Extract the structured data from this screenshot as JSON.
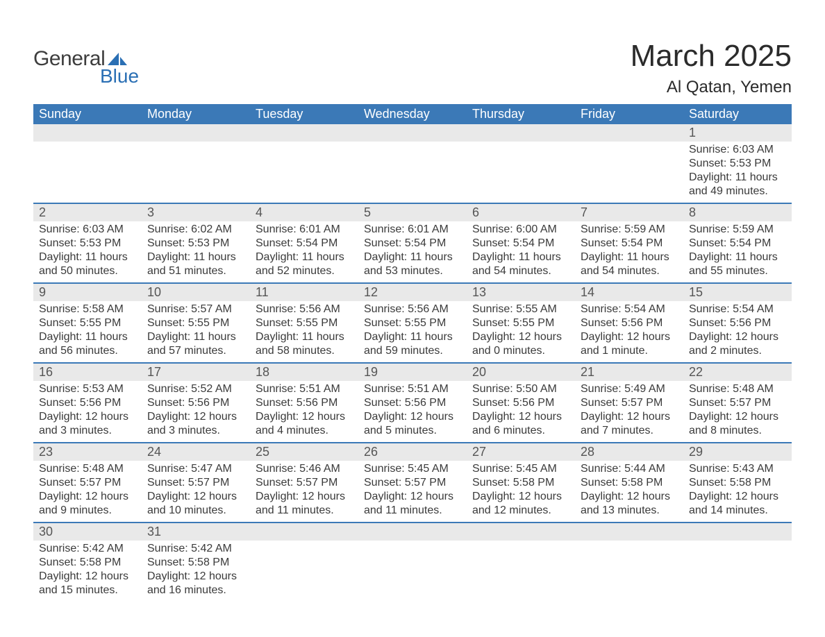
{
  "brand": {
    "word1": "General",
    "word2": "Blue",
    "logo_color": "#2a6fb4",
    "text_color": "#3d3d3d"
  },
  "title": "March 2025",
  "location": "Al Qatan, Yemen",
  "colors": {
    "header_bg": "#3b79b7",
    "header_text": "#ffffff",
    "row_divider": "#3b79b7",
    "daynum_bg": "#e9e9e9",
    "daynum_text": "#555555",
    "body_text": "#3a3a3a",
    "page_bg": "#ffffff"
  },
  "typography": {
    "title_fontsize": 44,
    "location_fontsize": 24,
    "header_fontsize": 18,
    "daynum_fontsize": 18,
    "body_fontsize": 16,
    "logo_fontsize": 30
  },
  "weekdays": [
    "Sunday",
    "Monday",
    "Tuesday",
    "Wednesday",
    "Thursday",
    "Friday",
    "Saturday"
  ],
  "weeks": [
    [
      null,
      null,
      null,
      null,
      null,
      null,
      {
        "n": "1",
        "sunrise": "Sunrise: 6:03 AM",
        "sunset": "Sunset: 5:53 PM",
        "dl1": "Daylight: 11 hours",
        "dl2": "and 49 minutes."
      }
    ],
    [
      {
        "n": "2",
        "sunrise": "Sunrise: 6:03 AM",
        "sunset": "Sunset: 5:53 PM",
        "dl1": "Daylight: 11 hours",
        "dl2": "and 50 minutes."
      },
      {
        "n": "3",
        "sunrise": "Sunrise: 6:02 AM",
        "sunset": "Sunset: 5:53 PM",
        "dl1": "Daylight: 11 hours",
        "dl2": "and 51 minutes."
      },
      {
        "n": "4",
        "sunrise": "Sunrise: 6:01 AM",
        "sunset": "Sunset: 5:54 PM",
        "dl1": "Daylight: 11 hours",
        "dl2": "and 52 minutes."
      },
      {
        "n": "5",
        "sunrise": "Sunrise: 6:01 AM",
        "sunset": "Sunset: 5:54 PM",
        "dl1": "Daylight: 11 hours",
        "dl2": "and 53 minutes."
      },
      {
        "n": "6",
        "sunrise": "Sunrise: 6:00 AM",
        "sunset": "Sunset: 5:54 PM",
        "dl1": "Daylight: 11 hours",
        "dl2": "and 54 minutes."
      },
      {
        "n": "7",
        "sunrise": "Sunrise: 5:59 AM",
        "sunset": "Sunset: 5:54 PM",
        "dl1": "Daylight: 11 hours",
        "dl2": "and 54 minutes."
      },
      {
        "n": "8",
        "sunrise": "Sunrise: 5:59 AM",
        "sunset": "Sunset: 5:54 PM",
        "dl1": "Daylight: 11 hours",
        "dl2": "and 55 minutes."
      }
    ],
    [
      {
        "n": "9",
        "sunrise": "Sunrise: 5:58 AM",
        "sunset": "Sunset: 5:55 PM",
        "dl1": "Daylight: 11 hours",
        "dl2": "and 56 minutes."
      },
      {
        "n": "10",
        "sunrise": "Sunrise: 5:57 AM",
        "sunset": "Sunset: 5:55 PM",
        "dl1": "Daylight: 11 hours",
        "dl2": "and 57 minutes."
      },
      {
        "n": "11",
        "sunrise": "Sunrise: 5:56 AM",
        "sunset": "Sunset: 5:55 PM",
        "dl1": "Daylight: 11 hours",
        "dl2": "and 58 minutes."
      },
      {
        "n": "12",
        "sunrise": "Sunrise: 5:56 AM",
        "sunset": "Sunset: 5:55 PM",
        "dl1": "Daylight: 11 hours",
        "dl2": "and 59 minutes."
      },
      {
        "n": "13",
        "sunrise": "Sunrise: 5:55 AM",
        "sunset": "Sunset: 5:55 PM",
        "dl1": "Daylight: 12 hours",
        "dl2": "and 0 minutes."
      },
      {
        "n": "14",
        "sunrise": "Sunrise: 5:54 AM",
        "sunset": "Sunset: 5:56 PM",
        "dl1": "Daylight: 12 hours",
        "dl2": "and 1 minute."
      },
      {
        "n": "15",
        "sunrise": "Sunrise: 5:54 AM",
        "sunset": "Sunset: 5:56 PM",
        "dl1": "Daylight: 12 hours",
        "dl2": "and 2 minutes."
      }
    ],
    [
      {
        "n": "16",
        "sunrise": "Sunrise: 5:53 AM",
        "sunset": "Sunset: 5:56 PM",
        "dl1": "Daylight: 12 hours",
        "dl2": "and 3 minutes."
      },
      {
        "n": "17",
        "sunrise": "Sunrise: 5:52 AM",
        "sunset": "Sunset: 5:56 PM",
        "dl1": "Daylight: 12 hours",
        "dl2": "and 3 minutes."
      },
      {
        "n": "18",
        "sunrise": "Sunrise: 5:51 AM",
        "sunset": "Sunset: 5:56 PM",
        "dl1": "Daylight: 12 hours",
        "dl2": "and 4 minutes."
      },
      {
        "n": "19",
        "sunrise": "Sunrise: 5:51 AM",
        "sunset": "Sunset: 5:56 PM",
        "dl1": "Daylight: 12 hours",
        "dl2": "and 5 minutes."
      },
      {
        "n": "20",
        "sunrise": "Sunrise: 5:50 AM",
        "sunset": "Sunset: 5:56 PM",
        "dl1": "Daylight: 12 hours",
        "dl2": "and 6 minutes."
      },
      {
        "n": "21",
        "sunrise": "Sunrise: 5:49 AM",
        "sunset": "Sunset: 5:57 PM",
        "dl1": "Daylight: 12 hours",
        "dl2": "and 7 minutes."
      },
      {
        "n": "22",
        "sunrise": "Sunrise: 5:48 AM",
        "sunset": "Sunset: 5:57 PM",
        "dl1": "Daylight: 12 hours",
        "dl2": "and 8 minutes."
      }
    ],
    [
      {
        "n": "23",
        "sunrise": "Sunrise: 5:48 AM",
        "sunset": "Sunset: 5:57 PM",
        "dl1": "Daylight: 12 hours",
        "dl2": "and 9 minutes."
      },
      {
        "n": "24",
        "sunrise": "Sunrise: 5:47 AM",
        "sunset": "Sunset: 5:57 PM",
        "dl1": "Daylight: 12 hours",
        "dl2": "and 10 minutes."
      },
      {
        "n": "25",
        "sunrise": "Sunrise: 5:46 AM",
        "sunset": "Sunset: 5:57 PM",
        "dl1": "Daylight: 12 hours",
        "dl2": "and 11 minutes."
      },
      {
        "n": "26",
        "sunrise": "Sunrise: 5:45 AM",
        "sunset": "Sunset: 5:57 PM",
        "dl1": "Daylight: 12 hours",
        "dl2": "and 11 minutes."
      },
      {
        "n": "27",
        "sunrise": "Sunrise: 5:45 AM",
        "sunset": "Sunset: 5:58 PM",
        "dl1": "Daylight: 12 hours",
        "dl2": "and 12 minutes."
      },
      {
        "n": "28",
        "sunrise": "Sunrise: 5:44 AM",
        "sunset": "Sunset: 5:58 PM",
        "dl1": "Daylight: 12 hours",
        "dl2": "and 13 minutes."
      },
      {
        "n": "29",
        "sunrise": "Sunrise: 5:43 AM",
        "sunset": "Sunset: 5:58 PM",
        "dl1": "Daylight: 12 hours",
        "dl2": "and 14 minutes."
      }
    ],
    [
      {
        "n": "30",
        "sunrise": "Sunrise: 5:42 AM",
        "sunset": "Sunset: 5:58 PM",
        "dl1": "Daylight: 12 hours",
        "dl2": "and 15 minutes."
      },
      {
        "n": "31",
        "sunrise": "Sunrise: 5:42 AM",
        "sunset": "Sunset: 5:58 PM",
        "dl1": "Daylight: 12 hours",
        "dl2": "and 16 minutes."
      },
      null,
      null,
      null,
      null,
      null
    ]
  ]
}
